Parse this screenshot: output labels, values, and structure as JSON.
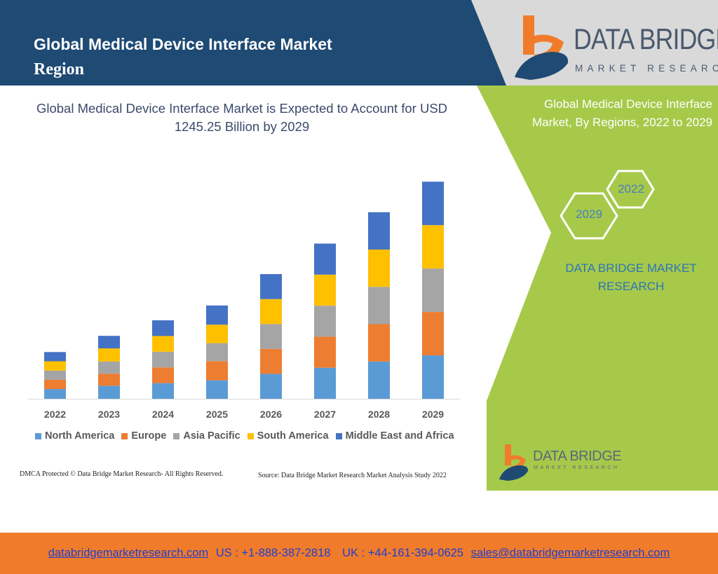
{
  "header": {
    "title_line1": "Global Medical Device Interface Market",
    "title_line2": "Region"
  },
  "brand": {
    "name": "DATA BRIDGE",
    "tagline": "MARKET RESEARCH"
  },
  "side_panel": {
    "title": "Global Medical Device Interface Market, By Regions, 2022 to 2029",
    "hex_year_a": "2022",
    "hex_year_b": "2029",
    "brand_text": "DATA BRIDGE MARKET RESEARCH"
  },
  "footer": {
    "website": "databridgemarketresearch.com",
    "us_phone": "US : +1-888-387-2818",
    "uk_phone": "UK : +44-161-394-0625",
    "email": "sales@databridgemarketresearch.com"
  },
  "notes": {
    "dmca": "DMCA Protected © Data Bridge Market Research- All Rights Reserved.",
    "source": "Source: Data Bridge Market Research Market Analysis Study 2022"
  },
  "colors": {
    "header_navy": "#1e4a73",
    "side_green": "#a6c94a",
    "footer_orange": "#f07c2b",
    "north_america": "#5b9bd5",
    "europe": "#ed7d31",
    "asia_pacific": "#a5a5a5",
    "south_america": "#ffc000",
    "middle_east_africa": "#4472c4"
  },
  "chart_data": {
    "type": "bar",
    "stacked": true,
    "title": "Global Medical Device Interface Market is Expected to Account for USD 1245.25 Billion by 2029",
    "categories": [
      "2022",
      "2023",
      "2024",
      "2025",
      "2026",
      "2027",
      "2028",
      "2029"
    ],
    "series": [
      {
        "name": "North America",
        "color": "#5b9bd5",
        "values": [
          56,
          75,
          90,
          106,
          143,
          178,
          214,
          249
        ]
      },
      {
        "name": "Europe",
        "color": "#ed7d31",
        "values": [
          53,
          69,
          90,
          110,
          143,
          178,
          214,
          249
        ]
      },
      {
        "name": "Asia Pacific",
        "color": "#a5a5a5",
        "values": [
          53,
          70,
          90,
          103,
          143,
          178,
          214,
          249
        ]
      },
      {
        "name": "South America",
        "color": "#ffc000",
        "values": [
          53,
          75,
          90,
          106,
          143,
          178,
          214,
          249
        ]
      },
      {
        "name": "Middle East and Africa",
        "color": "#4472c4",
        "values": [
          53,
          72,
          90,
          110,
          143,
          178,
          214,
          249
        ]
      }
    ],
    "ylim": [
      0,
      1250
    ],
    "grid": false,
    "legend": "bottom"
  }
}
